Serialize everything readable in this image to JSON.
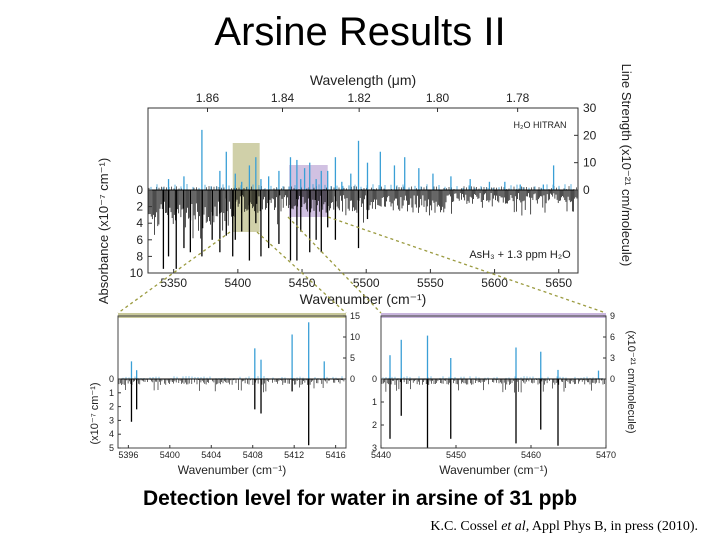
{
  "slide": {
    "title": "Arsine Results II",
    "caption": "Detection level for water in arsine of 31 ppb",
    "citation_prefix": "K.C. Cossel ",
    "citation_etal": "et al",
    "citation_suffix": ", Appl Phys B, in press (2010)."
  },
  "colors": {
    "line_strength": "#3a9fd6",
    "absorbance": "#000000",
    "highlight_left": "#c8c89a",
    "highlight_right": "#c9b6dd",
    "zoom_line": "#9b9b40"
  },
  "chart_data": [
    {
      "type": "line",
      "panel": "main",
      "title": "",
      "top_axis_label": "Wavelength (μm)",
      "top_ticks": [
        "1.86",
        "1.84",
        "1.82",
        "1.80",
        "1.78"
      ],
      "xlabel": "Wavenumber (cm⁻¹)",
      "xlim": [
        5330,
        5665
      ],
      "x_ticks": [
        5350,
        5400,
        5450,
        5500,
        5550,
        5600,
        5650
      ],
      "ylabel_left": "Absorbance (x10⁻⁷ cm⁻¹)",
      "ylim_left": [
        0,
        10
      ],
      "y_ticks_left": [
        0,
        2,
        4,
        6,
        8,
        10
      ],
      "ylabel_right": "Line Strength (x10⁻²¹ cm/molecule)",
      "ylim_right": [
        0,
        30
      ],
      "y_ticks_right": [
        0,
        10,
        20,
        30
      ],
      "annotations": [
        "H₂O HITRAN",
        "AsH₃ + 1.3 ppm H₂O"
      ],
      "highlight_regions": [
        [
          5396,
          5417
        ],
        [
          5440,
          5470
        ]
      ],
      "series": [
        {
          "name": "H₂O HITRAN",
          "x": [
            5346,
            5358,
            5372,
            5386,
            5391,
            5398,
            5403,
            5409,
            5414,
            5418,
            5424,
            5432,
            5441,
            5446,
            5449,
            5452,
            5456,
            5461,
            5465,
            5470,
            5476,
            5481,
            5488,
            5494,
            5501,
            5511,
            5522,
            5530,
            5541,
            5552,
            5566,
            5581,
            5596,
            5608,
            5620,
            5638,
            5646
          ],
          "values": [
            4,
            5,
            22,
            7,
            14,
            6,
            3,
            9,
            12,
            4,
            5,
            7,
            12,
            11,
            4,
            8,
            10,
            4,
            7,
            7,
            12,
            3,
            6,
            18,
            10,
            14,
            9,
            12,
            8,
            6,
            5,
            4,
            3,
            3,
            2,
            2,
            9
          ]
        },
        {
          "name": "AsH₃ + 1.3 ppm H₂O",
          "x": [
            5342,
            5346,
            5352,
            5358,
            5363,
            5372,
            5380,
            5386,
            5391,
            5396,
            5398,
            5403,
            5409,
            5414,
            5418,
            5424,
            5432,
            5441,
            5446,
            5449,
            5456,
            5461,
            5465,
            5470,
            5476,
            5494,
            5501
          ],
          "values": [
            9.5,
            8,
            9.5,
            7,
            7.5,
            8,
            6,
            7.5,
            5.5,
            8,
            6,
            5,
            8.5,
            4,
            8,
            7,
            6.5,
            8.5,
            8.5,
            5,
            7.5,
            6,
            7.5,
            4.5,
            6,
            7,
            3.5
          ]
        }
      ]
    },
    {
      "type": "line",
      "panel": "inset-left",
      "title": "",
      "xlabel": "Wavenumber (cm⁻¹)",
      "xlim": [
        5395,
        5417
      ],
      "x_ticks": [
        5396,
        5400,
        5404,
        5408,
        5412,
        5416
      ],
      "ylabel_left": "(x10⁻⁷ cm⁻¹)",
      "ylim_left": [
        0,
        5
      ],
      "y_ticks_left": [
        0,
        1,
        2,
        3,
        4,
        5
      ],
      "ylim_right": [
        0,
        15
      ],
      "y_ticks_right": [
        0,
        5,
        10,
        15
      ],
      "series": [
        {
          "name": "H₂O HITRAN",
          "x": [
            5396.3,
            5396.8,
            5408.2,
            5408.8,
            5411.8,
            5413.4,
            5414.9
          ],
          "values": [
            4.2,
            2.1,
            7.3,
            4.6,
            10.6,
            13.5,
            4.2
          ]
        },
        {
          "name": "AsH₃ + 1.3 ppm H₂O",
          "x": [
            5396.3,
            5396.8,
            5408.2,
            5408.8,
            5413.4,
            5411.8
          ],
          "values": [
            3.1,
            2.2,
            2.2,
            2.5,
            4.8,
            0.9
          ]
        }
      ]
    },
    {
      "type": "line",
      "panel": "inset-right",
      "title": "",
      "xlabel": "Wavenumber (cm⁻¹)",
      "xlim": [
        5440,
        5470
      ],
      "x_ticks": [
        5440,
        5450,
        5460,
        5470
      ],
      "ylim_left": [
        0,
        3
      ],
      "y_ticks_left": [
        0,
        1,
        2,
        3
      ],
      "ylabel_right": "(x10⁻²¹ cm/molecule)",
      "ylim_right": [
        0,
        9
      ],
      "y_ticks_right": [
        0,
        3,
        6,
        9
      ],
      "series": [
        {
          "name": "H₂O HITRAN",
          "x": [
            5441.2,
            5442.7,
            5446.2,
            5449.3,
            5458.0,
            5461.3,
            5463.6,
            5469.0
          ],
          "values": [
            3.4,
            5.6,
            6.2,
            3.0,
            4.5,
            3.9,
            1.3,
            1.2
          ]
        },
        {
          "name": "AsH₃ + 1.3 ppm H₂O",
          "x": [
            5441.2,
            5442.7,
            5446.2,
            5449.3,
            5458.0,
            5461.3,
            5463.6
          ],
          "values": [
            2.6,
            1.6,
            3.0,
            2.6,
            2.8,
            2.2,
            2.9
          ]
        }
      ]
    }
  ]
}
